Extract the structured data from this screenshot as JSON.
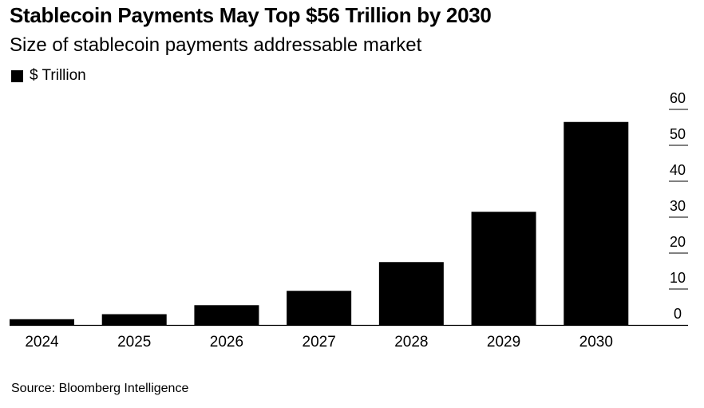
{
  "title": "Stablecoin Payments May Top $56 Trillion by 2030",
  "subtitle": "Size of stablecoin payments addressable market",
  "legend_label": "$ Trillion",
  "source": "Source: Bloomberg Intelligence",
  "colors": {
    "bar": "#000000",
    "grid": "#000000",
    "text": "#000000"
  },
  "chart_data": {
    "type": "bar",
    "categories": [
      "2024",
      "2025",
      "2026",
      "2027",
      "2028",
      "2029",
      "2030"
    ],
    "series": [
      {
        "name": "$ Trillion",
        "values": [
          1.6,
          3.0,
          5.5,
          9.5,
          17.5,
          31.5,
          56.5
        ]
      }
    ],
    "title": "Stablecoin Payments May Top $56 Trillion by 2030",
    "subtitle": "Size of stablecoin payments addressable market",
    "xlabel": "",
    "ylabel": "",
    "ylim": [
      0,
      60
    ],
    "yticks": [
      "0",
      "10",
      "20",
      "30",
      "40",
      "50",
      "60"
    ],
    "y_axis_side": "right",
    "grid": true,
    "legend_position": "top-left"
  }
}
